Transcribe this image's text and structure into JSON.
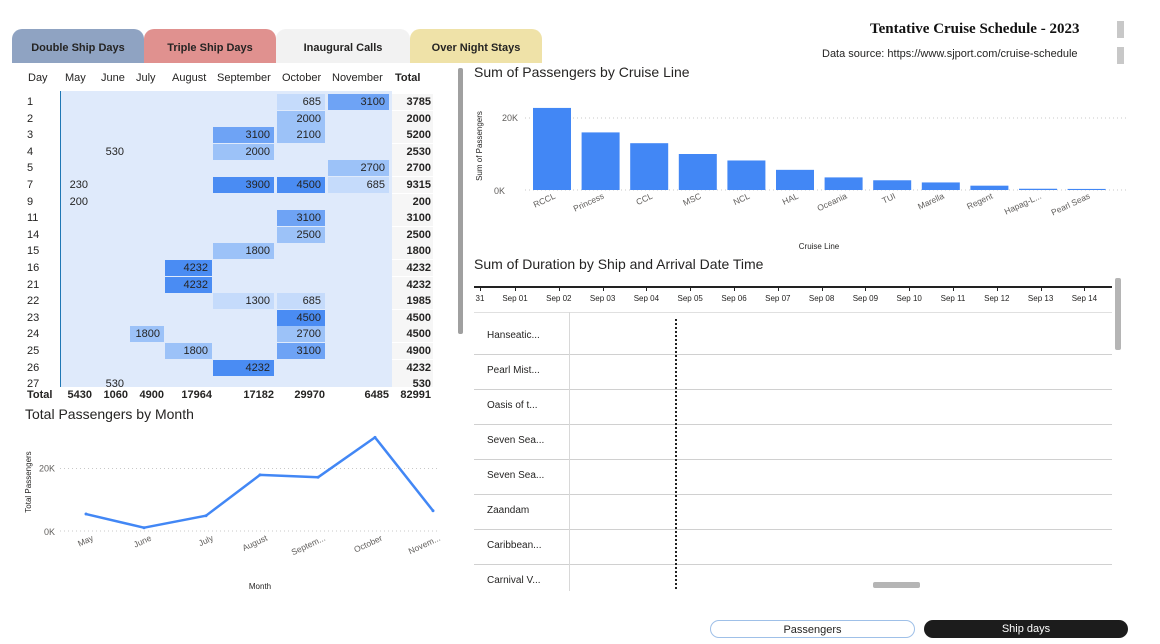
{
  "header": {
    "title": "Tentative Cruise Schedule - 2023",
    "source": "Data source: https://www.sjport.com/cruise-schedule"
  },
  "tabs": [
    {
      "label": "Double Ship Days",
      "color": "#8fa3c2"
    },
    {
      "label": "Triple Ship Days",
      "color": "#e0918f"
    },
    {
      "label": "Inaugural Calls",
      "color": "#f2f2f2"
    },
    {
      "label": "Over Night Stays",
      "color": "#efe2a8"
    }
  ],
  "matrix": {
    "columns": [
      "Day",
      "May",
      "June",
      "July",
      "August",
      "September",
      "October",
      "November",
      "Total"
    ],
    "rows": [
      {
        "day": "1",
        "values": [
          null,
          null,
          null,
          null,
          null,
          685,
          3100
        ],
        "total": "3785"
      },
      {
        "day": "2",
        "values": [
          null,
          null,
          null,
          null,
          null,
          2000,
          null
        ],
        "total": "2000"
      },
      {
        "day": "3",
        "values": [
          null,
          null,
          null,
          null,
          3100,
          2100,
          null
        ],
        "total": "5200"
      },
      {
        "day": "4",
        "values": [
          null,
          530,
          null,
          null,
          2000,
          null,
          null
        ],
        "total": "2530"
      },
      {
        "day": "5",
        "values": [
          null,
          null,
          null,
          null,
          null,
          null,
          2700
        ],
        "total": "2700"
      },
      {
        "day": "7",
        "values": [
          230,
          null,
          null,
          null,
          3900,
          4500,
          685
        ],
        "total": "9315"
      },
      {
        "day": "9",
        "values": [
          200,
          null,
          null,
          null,
          null,
          null,
          null
        ],
        "total": "200"
      },
      {
        "day": "11",
        "values": [
          null,
          null,
          null,
          null,
          null,
          3100,
          null
        ],
        "total": "3100"
      },
      {
        "day": "14",
        "values": [
          null,
          null,
          null,
          null,
          null,
          2500,
          null
        ],
        "total": "2500"
      },
      {
        "day": "15",
        "values": [
          null,
          null,
          null,
          null,
          1800,
          null,
          null
        ],
        "total": "1800"
      },
      {
        "day": "16",
        "values": [
          null,
          null,
          null,
          4232,
          null,
          null,
          null
        ],
        "total": "4232"
      },
      {
        "day": "21",
        "values": [
          null,
          null,
          null,
          4232,
          null,
          null,
          null
        ],
        "total": "4232"
      },
      {
        "day": "22",
        "values": [
          null,
          null,
          null,
          null,
          1300,
          685,
          null
        ],
        "total": "1985"
      },
      {
        "day": "23",
        "values": [
          null,
          null,
          null,
          null,
          null,
          4500,
          null
        ],
        "total": "4500"
      },
      {
        "day": "24",
        "values": [
          null,
          null,
          1800,
          null,
          null,
          2700,
          null
        ],
        "total": "4500"
      },
      {
        "day": "25",
        "values": [
          null,
          null,
          null,
          1800,
          null,
          3100,
          null
        ],
        "total": "4900"
      },
      {
        "day": "26",
        "values": [
          null,
          null,
          null,
          null,
          4232,
          null,
          null
        ],
        "total": "4232"
      },
      {
        "day": "27",
        "values": [
          null,
          530,
          null,
          null,
          null,
          null,
          null
        ],
        "total": "530"
      }
    ],
    "totals": {
      "label": "Total",
      "values": [
        "5430",
        "1060",
        "4900",
        "17964",
        "17182",
        "29970",
        "6485"
      ],
      "grand": "82991"
    }
  },
  "chart_data": [
    {
      "type": "bar",
      "title": "Sum of Passengers by Cruise Line",
      "xlabel": "Cruise Line",
      "ylabel": "Sum of Passengers",
      "categories": [
        "RCCL",
        "Princess",
        "CCL",
        "MSC",
        "NCL",
        "HAL",
        "Oceania",
        "TUI",
        "Marella",
        "Regent",
        "Hapag-L...",
        "Pearl Seas"
      ],
      "values": [
        22800,
        16000,
        13000,
        10000,
        8200,
        5600,
        3500,
        2700,
        2100,
        1200,
        350,
        300
      ],
      "ylim": [
        0,
        25000
      ],
      "yticks": [
        "0K",
        "20K"
      ],
      "color": "#4287f5"
    },
    {
      "type": "line",
      "title": "Total Passengers by Month",
      "xlabel": "Month",
      "ylabel": "Total Passengers",
      "categories": [
        "May",
        "June",
        "July",
        "August",
        "Septem...",
        "October",
        "Novem..."
      ],
      "values": [
        5430,
        1060,
        4900,
        17964,
        17182,
        29970,
        6485
      ],
      "ylim": [
        0,
        32000
      ],
      "yticks": [
        "0K",
        "20K"
      ],
      "color": "#4287f5"
    },
    {
      "type": "gantt",
      "title": "Sum of Duration by Ship and Arrival Date Time",
      "x_ticks": [
        "31",
        "Sep 01",
        "Sep 02",
        "Sep 03",
        "Sep 04",
        "Sep 05",
        "Sep 06",
        "Sep 07",
        "Sep 08",
        "Sep 09",
        "Sep 10",
        "Sep 11",
        "Sep 12",
        "Sep 13",
        "Sep 14"
      ],
      "ships": [
        "Hanseatic...",
        "Pearl Mist...",
        "Oasis of t...",
        "Seven Sea...",
        "Seven Sea...",
        "Zaandam",
        "Caribbean...",
        "Carnival V..."
      ]
    }
  ],
  "buttons": {
    "passengers": "Passengers",
    "ship_days": "Ship days"
  }
}
